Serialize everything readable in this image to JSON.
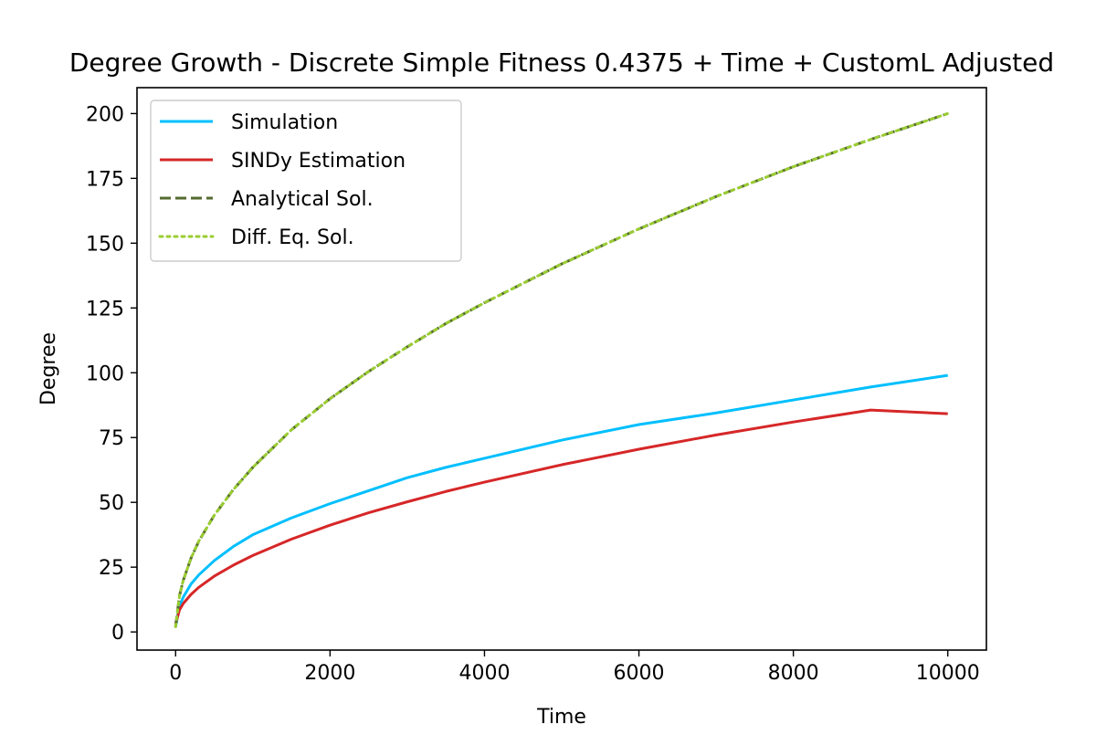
{
  "chart_data": {
    "type": "line",
    "title": "Degree Growth - Discrete Simple Fitness 0.4375 + Time + CustomL Adjusted",
    "xlabel": "Time",
    "ylabel": "Degree",
    "xlim": [
      -500,
      10500
    ],
    "ylim": [
      -7,
      210
    ],
    "xticks": [
      0,
      2000,
      4000,
      6000,
      8000,
      10000
    ],
    "xtick_labels": [
      "0",
      "2000",
      "4000",
      "6000",
      "8000",
      "10000"
    ],
    "yticks": [
      0,
      25,
      50,
      75,
      100,
      125,
      150,
      175,
      200
    ],
    "ytick_labels": [
      "0",
      "25",
      "50",
      "75",
      "100",
      "125",
      "150",
      "175",
      "200"
    ],
    "grid": false,
    "legend_position": "top-left",
    "series": [
      {
        "name": "Simulation",
        "color": "#00bfff",
        "dash": "solid",
        "x": [
          0,
          50,
          100,
          200,
          300,
          500,
          750,
          1000,
          1500,
          2000,
          2500,
          3000,
          3500,
          4000,
          5000,
          6000,
          7000,
          8000,
          9000,
          10000
        ],
        "values": [
          2,
          10,
          13.5,
          18.5,
          22,
          27.5,
          33,
          37.5,
          44,
          49.5,
          54.5,
          59.5,
          63.5,
          67,
          74,
          80,
          84.5,
          89.5,
          94.5,
          99
        ]
      },
      {
        "name": "SINDy Estimation",
        "color": "#d62728",
        "dash": "solid",
        "x": [
          0,
          50,
          100,
          200,
          300,
          500,
          750,
          1000,
          1500,
          2000,
          2500,
          3000,
          3500,
          4000,
          5000,
          6000,
          7000,
          8000,
          9000,
          10000
        ],
        "values": [
          3,
          8.5,
          11,
          14.5,
          17.2,
          21.5,
          25.8,
          29.5,
          35.8,
          41.2,
          46,
          50.2,
          54.2,
          57.8,
          64.5,
          70.5,
          76,
          81,
          85.6,
          84.2
        ]
      },
      {
        "name": "Analytical Sol.",
        "color": "#556b2f",
        "dash": "dashed",
        "x": [
          0,
          50,
          100,
          200,
          300,
          500,
          750,
          1000,
          1500,
          2000,
          2500,
          3000,
          3500,
          4000,
          5000,
          6000,
          7000,
          8000,
          9000,
          10000
        ],
        "values": [
          2,
          14,
          20,
          28.5,
          35,
          45,
          55,
          63.5,
          78,
          90,
          100.5,
          110,
          119,
          127,
          142,
          155.5,
          168,
          179.5,
          190,
          200
        ]
      },
      {
        "name": "Diff. Eq. Sol.",
        "color": "#9acd32",
        "dash": "dotted",
        "x": [
          0,
          50,
          100,
          200,
          300,
          500,
          750,
          1000,
          1500,
          2000,
          2500,
          3000,
          3500,
          4000,
          5000,
          6000,
          7000,
          8000,
          9000,
          10000
        ],
        "values": [
          2,
          14,
          20,
          28.5,
          35,
          45,
          55,
          63.5,
          78,
          90,
          100.5,
          110,
          119,
          127,
          142,
          155.5,
          168,
          179.5,
          190,
          200
        ]
      }
    ]
  }
}
